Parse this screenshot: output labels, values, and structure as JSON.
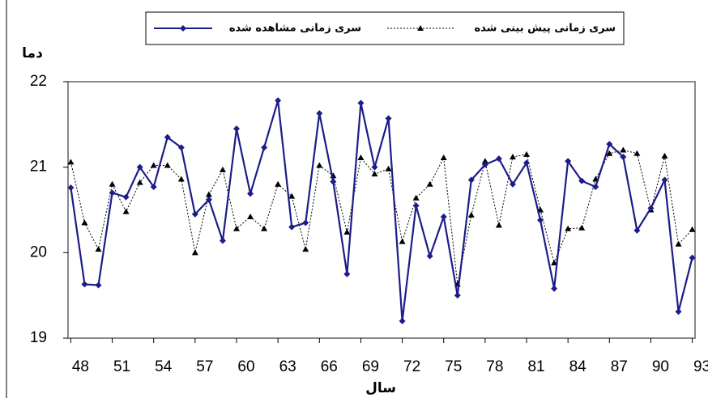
{
  "chart_data": {
    "type": "line",
    "y_label": "دما",
    "x_label": "سال",
    "x": [
      48,
      49,
      50,
      51,
      52,
      53,
      54,
      55,
      56,
      57,
      58,
      59,
      60,
      61,
      62,
      63,
      64,
      65,
      66,
      67,
      68,
      69,
      70,
      71,
      72,
      73,
      74,
      75,
      76,
      77,
      78,
      79,
      80,
      81,
      82,
      83,
      84,
      85,
      86,
      87,
      88,
      89,
      90,
      91,
      92,
      93
    ],
    "series": [
      {
        "name": "سری زمانی مشاهده شده",
        "color": "#1c1c8a",
        "marker": "diamond",
        "dash": "solid",
        "values": [
          20.76,
          19.63,
          19.62,
          20.7,
          20.65,
          21.0,
          20.77,
          21.35,
          21.23,
          20.45,
          20.62,
          20.14,
          21.45,
          20.69,
          21.23,
          21.78,
          20.3,
          20.35,
          21.63,
          20.83,
          19.75,
          21.75,
          21.0,
          21.57,
          19.2,
          20.55,
          19.96,
          20.42,
          19.5,
          20.85,
          21.03,
          21.1,
          20.8,
          21.05,
          20.38,
          19.58,
          21.07,
          20.84,
          20.77,
          21.27,
          21.12,
          20.26,
          20.52,
          20.85,
          19.31,
          19.94
        ]
      },
      {
        "name": "سری زمانی پیش بینی شده",
        "color": "#000000",
        "marker": "triangle",
        "dash": "dotted",
        "values": [
          21.06,
          20.35,
          20.04,
          20.8,
          20.48,
          20.82,
          21.02,
          21.02,
          20.86,
          20.0,
          20.68,
          20.97,
          20.28,
          20.42,
          20.28,
          20.8,
          20.66,
          20.04,
          21.02,
          20.9,
          20.24,
          21.11,
          20.92,
          20.98,
          20.13,
          20.64,
          20.8,
          21.11,
          19.63,
          20.44,
          21.07,
          20.32,
          21.12,
          21.15,
          20.5,
          19.88,
          20.28,
          20.29,
          20.86,
          21.16,
          21.2,
          21.16,
          20.5,
          21.13,
          20.1,
          20.27
        ]
      }
    ],
    "xlim": [
      47.8,
      93.2
    ],
    "xticks": [
      48,
      51,
      54,
      57,
      60,
      63,
      66,
      69,
      72,
      75,
      78,
      81,
      84,
      87,
      90,
      93
    ],
    "ylim": [
      19,
      22
    ],
    "yticks": [
      19,
      20,
      21,
      22
    ],
    "grid": false,
    "legend": "top"
  }
}
